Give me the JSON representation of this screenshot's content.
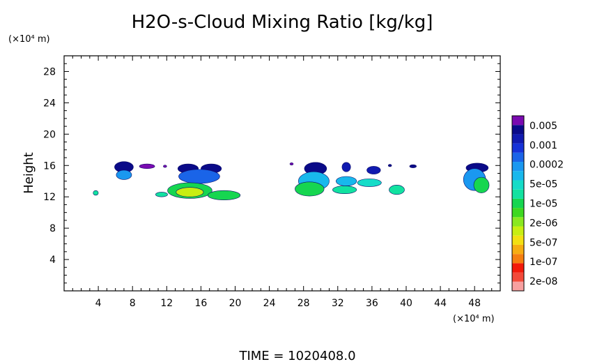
{
  "chart_data": {
    "type": "heatmap",
    "title": "H2O-s-Cloud Mixing Ratio [kg/kg]",
    "ylabel": "Height",
    "x_unit": "(×10⁴ m)",
    "y_unit": "(×10⁴ m)",
    "xlim": [
      0,
      51
    ],
    "ylim": [
      0,
      30
    ],
    "xticks": [
      4,
      8,
      12,
      16,
      20,
      24,
      28,
      32,
      36,
      40,
      44,
      48
    ],
    "yticks": [
      4,
      8,
      12,
      16,
      20,
      24,
      28
    ],
    "grid": false,
    "legend": "colorbar-right",
    "colorbar": {
      "labels": [
        "0.005",
        "0.001",
        "0.0002",
        "5e-05",
        "1e-05",
        "2e-06",
        "5e-07",
        "1e-07",
        "2e-08"
      ],
      "colors": [
        "#f7a0a0",
        "#f24a3a",
        "#f21a0a",
        "#f57e10",
        "#f6ad12",
        "#f3e012",
        "#c8ee12",
        "#8ae820",
        "#3ed820",
        "#16d650",
        "#12e2a0",
        "#16dcc8",
        "#18b8ec",
        "#1a98f0",
        "#1a64e8",
        "#1532d8",
        "#101ab0",
        "#0a0a88",
        "#7a0ab0"
      ]
    },
    "footer": "TIME = 1020408.0",
    "cloud_regions": [
      {
        "x": 7.0,
        "y": 15.8,
        "rx": 1.1,
        "ry": 0.7,
        "level": 17
      },
      {
        "x": 7.0,
        "y": 14.8,
        "rx": 0.9,
        "ry": 0.6,
        "level": 13
      },
      {
        "x": 9.7,
        "y": 15.9,
        "rx": 0.9,
        "ry": 0.3,
        "level": 18
      },
      {
        "x": 11.8,
        "y": 15.9,
        "rx": 0.2,
        "ry": 0.15,
        "level": 18
      },
      {
        "x": 14.5,
        "y": 15.6,
        "rx": 1.2,
        "ry": 0.6,
        "level": 17
      },
      {
        "x": 17.2,
        "y": 15.6,
        "rx": 1.2,
        "ry": 0.6,
        "level": 17
      },
      {
        "x": 15.8,
        "y": 14.6,
        "rx": 2.4,
        "ry": 0.9,
        "level": 14
      },
      {
        "x": 14.7,
        "y": 12.8,
        "rx": 2.6,
        "ry": 1.0,
        "level": 9
      },
      {
        "x": 14.7,
        "y": 12.6,
        "rx": 1.6,
        "ry": 0.6,
        "level": 6
      },
      {
        "x": 18.7,
        "y": 12.2,
        "rx": 1.9,
        "ry": 0.6,
        "level": 9
      },
      {
        "x": 11.4,
        "y": 12.3,
        "rx": 0.7,
        "ry": 0.3,
        "level": 10
      },
      {
        "x": 3.7,
        "y": 12.5,
        "rx": 0.3,
        "ry": 0.3,
        "level": 10
      },
      {
        "x": 29.4,
        "y": 15.6,
        "rx": 1.3,
        "ry": 0.8,
        "level": 17
      },
      {
        "x": 29.2,
        "y": 14.0,
        "rx": 1.8,
        "ry": 1.2,
        "level": 12
      },
      {
        "x": 28.7,
        "y": 13.0,
        "rx": 1.7,
        "ry": 0.9,
        "level": 9
      },
      {
        "x": 26.6,
        "y": 16.2,
        "rx": 0.2,
        "ry": 0.15,
        "level": 18
      },
      {
        "x": 33.0,
        "y": 15.8,
        "rx": 0.5,
        "ry": 0.6,
        "level": 16
      },
      {
        "x": 33.0,
        "y": 14.0,
        "rx": 1.2,
        "ry": 0.6,
        "level": 12
      },
      {
        "x": 32.8,
        "y": 12.9,
        "rx": 1.4,
        "ry": 0.5,
        "level": 10
      },
      {
        "x": 36.2,
        "y": 15.4,
        "rx": 0.8,
        "ry": 0.5,
        "level": 16
      },
      {
        "x": 35.7,
        "y": 13.8,
        "rx": 1.4,
        "ry": 0.5,
        "level": 11
      },
      {
        "x": 38.9,
        "y": 12.9,
        "rx": 0.9,
        "ry": 0.6,
        "level": 10
      },
      {
        "x": 40.8,
        "y": 15.9,
        "rx": 0.4,
        "ry": 0.2,
        "level": 17
      },
      {
        "x": 38.1,
        "y": 16.0,
        "rx": 0.2,
        "ry": 0.15,
        "level": 17
      },
      {
        "x": 48.3,
        "y": 15.7,
        "rx": 1.3,
        "ry": 0.6,
        "level": 17
      },
      {
        "x": 48.0,
        "y": 14.2,
        "rx": 1.3,
        "ry": 1.4,
        "level": 13
      },
      {
        "x": 48.8,
        "y": 13.5,
        "rx": 0.9,
        "ry": 1.0,
        "level": 9
      }
    ]
  }
}
